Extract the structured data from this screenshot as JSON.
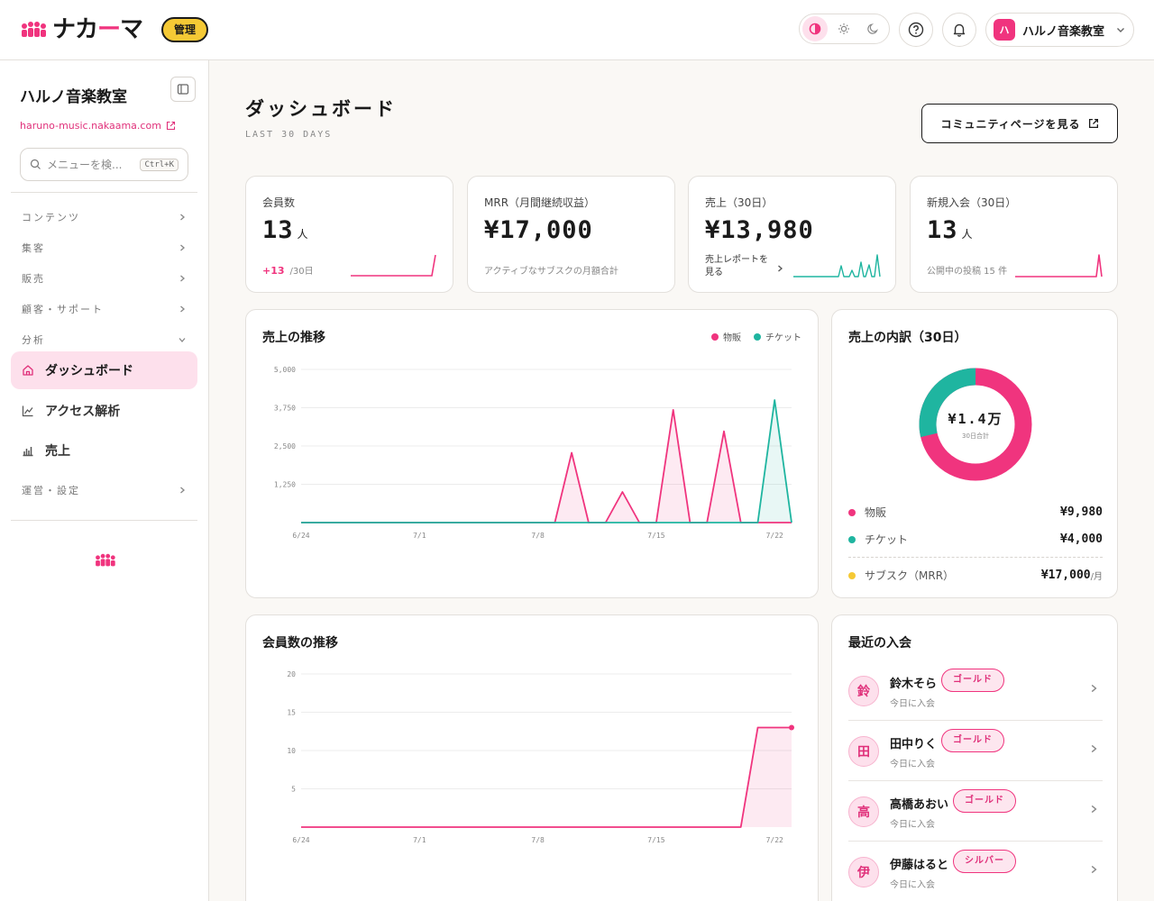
{
  "brand": {
    "name_pre": "ナカ",
    "name_dash": "ー",
    "name_post": "マ",
    "badge": "管理",
    "accent": "#f0347e"
  },
  "header": {
    "account_initial": "ハ",
    "account_name": "ハルノ音楽教室"
  },
  "sidebar": {
    "title": "ハルノ音楽教室",
    "url": "haruno-music.nakaama.com",
    "search_placeholder": "メニューを検...",
    "search_shortcut": "Ctrl+K",
    "groups": [
      "コンテンツ",
      "集客",
      "販売",
      "顧客・サポート",
      "分析",
      "運営・設定"
    ],
    "items": [
      "ダッシュボード",
      "アクセス解析",
      "売上"
    ]
  },
  "page": {
    "title": "ダッシュボード",
    "subtitle": "LAST 30 DAYS",
    "community_button": "コミュニティページを見る"
  },
  "kpis": [
    {
      "label": "会員数",
      "value": "13",
      "unit": "人",
      "delta": "+13",
      "delta_suffix": "/30日"
    },
    {
      "label": "MRR（月間継続収益）",
      "value": "¥17,000",
      "foot": "アクティブなサブスクの月額合計"
    },
    {
      "label": "売上（30日）",
      "value": "¥13,980",
      "link": "売上レポートを見る"
    },
    {
      "label": "新規入会（30日）",
      "value": "13",
      "unit": "人",
      "foot": "公開中の投稿 15 件"
    }
  ],
  "sales_chart": {
    "title": "売上の推移",
    "legend": [
      "物販",
      "チケット"
    ]
  },
  "breakdown": {
    "title": "売上の内訳（30日）",
    "center_value": "¥1.4万",
    "center_sub": "30日合計",
    "rows": [
      {
        "name": "物販",
        "value": "¥9,980",
        "color": "#f0347e"
      },
      {
        "name": "チケット",
        "value": "¥4,000",
        "color": "#1fb5a0"
      },
      {
        "name": "サブスク（MRR）",
        "value": "¥17,000",
        "suffix": "/月",
        "color": "#f5c935"
      }
    ]
  },
  "members_chart": {
    "title": "会員数の推移"
  },
  "recent": {
    "title": "最近の入会",
    "members": [
      {
        "initial": "鈴",
        "name": "鈴木そら",
        "plan": "ゴールド",
        "when": "今日に入会"
      },
      {
        "initial": "田",
        "name": "田中りく",
        "plan": "ゴールド",
        "when": "今日に入会"
      },
      {
        "initial": "高",
        "name": "高橋あおい",
        "plan": "ゴールド",
        "when": "今日に入会"
      },
      {
        "initial": "伊",
        "name": "伊藤はると",
        "plan": "シルバー",
        "when": "今日に入会"
      }
    ]
  },
  "chart_data": [
    {
      "type": "area",
      "title": "売上の推移",
      "x_ticks": [
        "6/24",
        "7/1",
        "7/8",
        "7/15",
        "7/22"
      ],
      "y_ticks": [
        "5,000",
        "3,750",
        "2,500",
        "1,250"
      ],
      "ylim": [
        0,
        5000
      ],
      "x_start": "2025-06-24",
      "series": [
        {
          "name": "物販",
          "color": "#f0347e",
          "values": [
            0,
            0,
            0,
            0,
            0,
            0,
            0,
            0,
            0,
            0,
            0,
            0,
            0,
            0,
            0,
            0,
            2280,
            0,
            0,
            1000,
            0,
            0,
            3680,
            0,
            0,
            2980,
            0,
            0,
            0,
            0
          ]
        },
        {
          "name": "チケット",
          "color": "#1fb5a0",
          "values": [
            0,
            0,
            0,
            0,
            0,
            0,
            0,
            0,
            0,
            0,
            0,
            0,
            0,
            0,
            0,
            0,
            0,
            0,
            0,
            0,
            0,
            0,
            0,
            0,
            0,
            0,
            0,
            0,
            4000,
            0
          ]
        }
      ],
      "grid": true,
      "legend": "top-right"
    },
    {
      "type": "area",
      "title": "会員数の推移",
      "x_ticks": [
        "6/24",
        "7/1",
        "7/8",
        "7/15",
        "7/22"
      ],
      "y_ticks": [
        "20",
        "15",
        "10",
        "5"
      ],
      "ylim": [
        0,
        20
      ],
      "x_start": "2025-06-24",
      "series": [
        {
          "color": "#f0347e",
          "values": [
            0,
            0,
            0,
            0,
            0,
            0,
            0,
            0,
            0,
            0,
            0,
            0,
            0,
            0,
            0,
            0,
            0,
            0,
            0,
            0,
            0,
            0,
            0,
            0,
            0,
            0,
            0,
            13,
            13,
            13
          ]
        }
      ],
      "grid": true
    }
  ]
}
